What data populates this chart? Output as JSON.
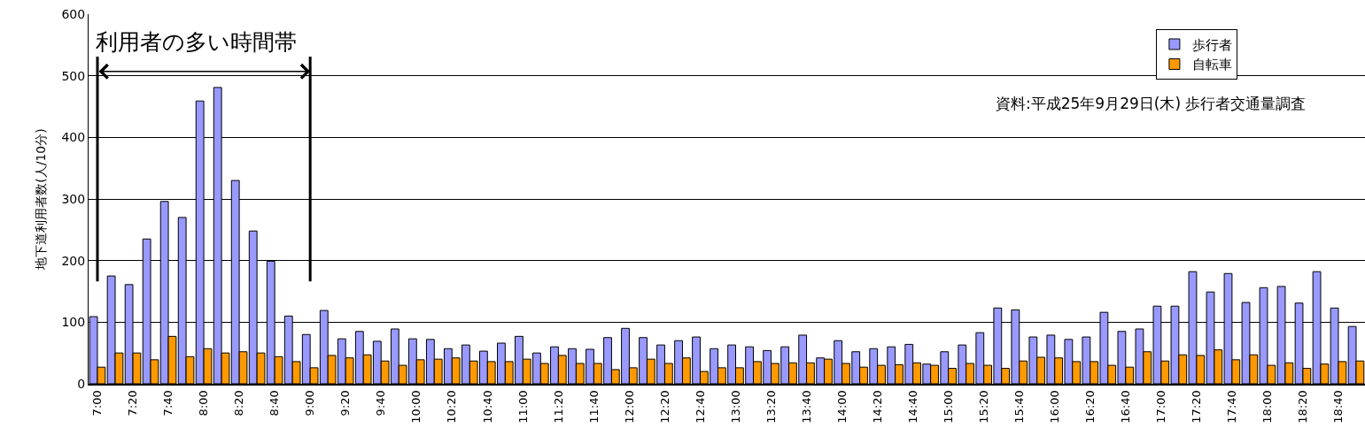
{
  "chart_data": {
    "type": "bar",
    "ylabel": "地下道利用者数(人/10分)",
    "categories": [
      "7:00",
      null,
      "7:20",
      null,
      "7:40",
      null,
      "8:00",
      null,
      "8:20",
      null,
      "8:40",
      null,
      "9:00",
      null,
      "9:20",
      null,
      "9:40",
      null,
      "10:00",
      null,
      "10:20",
      null,
      "10:40",
      null,
      "11:00",
      null,
      "11:20",
      null,
      "11:40",
      null,
      "12:00",
      null,
      "12:20",
      null,
      "12:40",
      null,
      "13:00",
      null,
      "13:20",
      null,
      "13:40",
      null,
      "14:00",
      null,
      "14:20",
      null,
      "14:40",
      null,
      "15:00",
      null,
      "15:20",
      null,
      "15:40",
      null,
      "16:00",
      null,
      "16:20",
      null,
      "16:40",
      null,
      "17:00",
      null,
      "17:20",
      null,
      "17:40",
      null,
      "18:00",
      null,
      "18:20",
      null,
      "18:40",
      null
    ],
    "series": [
      {
        "name": "歩行者",
        "color": "#9999ff",
        "values": [
          109,
          175,
          161,
          235,
          296,
          270,
          459,
          481,
          330,
          248,
          199,
          110,
          80,
          119,
          73,
          85,
          69,
          89,
          73,
          72,
          57,
          63,
          53,
          66,
          77,
          50,
          60,
          57,
          56,
          75,
          90,
          75,
          63,
          70,
          76,
          57,
          63,
          60,
          54,
          60,
          79,
          42,
          70,
          52,
          57,
          60,
          64,
          32,
          52,
          63,
          83,
          123,
          120,
          76,
          79,
          72,
          76,
          116,
          85,
          89,
          126,
          126,
          182,
          149,
          179,
          132,
          156,
          158,
          131,
          182,
          123,
          93
        ]
      },
      {
        "name": "自転車",
        "color": "#ff9900",
        "values": [
          27,
          50,
          50,
          39,
          77,
          44,
          57,
          50,
          52,
          50,
          44,
          36,
          26,
          46,
          42,
          47,
          37,
          30,
          39,
          40,
          42,
          37,
          36,
          36,
          40,
          33,
          46,
          33,
          33,
          23,
          26,
          40,
          33,
          42,
          20,
          26,
          26,
          36,
          33,
          34,
          34,
          40,
          33,
          27,
          30,
          31,
          34,
          30,
          25,
          33,
          30,
          25,
          37,
          43,
          42,
          36,
          36,
          30,
          27,
          52,
          37,
          47,
          46,
          55,
          39,
          47,
          30,
          34,
          25,
          32,
          36,
          37
        ]
      }
    ],
    "ylim": [
      0,
      600
    ],
    "yticks": [
      0,
      100,
      200,
      300,
      400,
      500,
      600
    ],
    "grid": "y",
    "legend": "top right",
    "ref_lines": [
      {
        "axis": "x",
        "value": "7:00",
        "color": "#000000"
      },
      {
        "axis": "x",
        "value": "9:00",
        "color": "#000000"
      }
    ],
    "annotations": [
      "利用者の多い時間帯",
      "資料:平成25年9月29日(木) 歩行者交通量調査"
    ]
  }
}
